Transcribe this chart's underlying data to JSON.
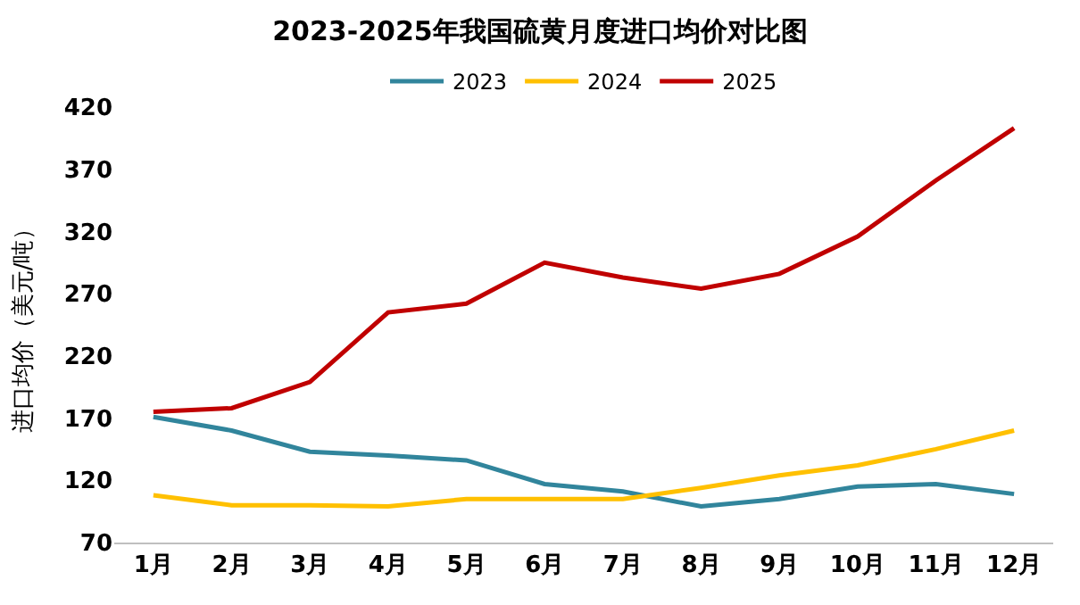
{
  "chart_data": {
    "type": "line",
    "title": "2023-2025年我国硫黄月度进口均价对比图",
    "ylabel": "进口均价（美元/吨）",
    "categories": [
      "1月",
      "2月",
      "3月",
      "4月",
      "5月",
      "6月",
      "7月",
      "8月",
      "9月",
      "10月",
      "11月",
      "12月"
    ],
    "series": [
      {
        "name": "2023",
        "color": "#31859c",
        "values": [
          171,
          160,
          143,
          140,
          136,
          117,
          111,
          99,
          105,
          115,
          117,
          109
        ]
      },
      {
        "name": "2024",
        "color": "#ffc000",
        "values": [
          108,
          100,
          100,
          99,
          105,
          105,
          105,
          114,
          124,
          132,
          145,
          160
        ]
      },
      {
        "name": "2025",
        "color": "#c00000",
        "values": [
          175,
          178,
          199,
          255,
          262,
          295,
          283,
          274,
          286,
          316,
          361,
          403
        ]
      }
    ],
    "ylim": [
      70,
      420
    ],
    "yticks": [
      70,
      120,
      170,
      220,
      270,
      320,
      370,
      420
    ],
    "grid": false,
    "legend": "top",
    "marker": "none",
    "line_style": "solid"
  }
}
